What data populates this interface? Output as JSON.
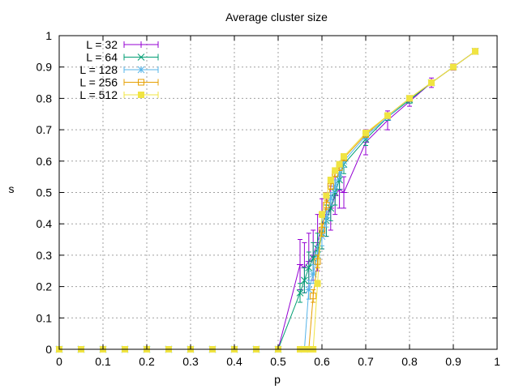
{
  "chart_data": {
    "type": "line",
    "title": "Average cluster size",
    "xlabel": "p",
    "ylabel": "s",
    "xlim": [
      0,
      1
    ],
    "ylim": [
      0,
      1
    ],
    "xticks": [
      "0",
      "0.1",
      "0.2",
      "0.3",
      "0.4",
      "0.5",
      "0.6",
      "0.7",
      "0.8",
      "0.9",
      "1"
    ],
    "yticks": [
      "0",
      "0.1",
      "0.2",
      "0.3",
      "0.4",
      "0.5",
      "0.6",
      "0.7",
      "0.8",
      "0.9",
      "1"
    ],
    "grid": true,
    "legend_position": "top-left",
    "series": [
      {
        "name": "L = 32",
        "color": "#9400d3",
        "marker": "plus",
        "x": [
          0,
          0.05,
          0.1,
          0.15,
          0.2,
          0.25,
          0.3,
          0.35,
          0.4,
          0.45,
          0.5,
          0.55,
          0.56,
          0.57,
          0.58,
          0.59,
          0.6,
          0.61,
          0.62,
          0.63,
          0.64,
          0.65,
          0.7,
          0.75,
          0.8,
          0.85,
          0.9,
          0.95
        ],
        "y": [
          0,
          0,
          0,
          0,
          0,
          0,
          0,
          0,
          0,
          0,
          0,
          0.27,
          0.26,
          0.28,
          0.3,
          0.34,
          0.4,
          0.43,
          0.45,
          0.49,
          0.51,
          0.5,
          0.66,
          0.73,
          0.79,
          0.85,
          0.9,
          0.95
        ],
        "err": [
          0,
          0,
          0,
          0,
          0,
          0,
          0,
          0,
          0,
          0,
          0,
          0.08,
          0.08,
          0.09,
          0.08,
          0.09,
          0.08,
          0.07,
          0.07,
          0.06,
          0.06,
          0.05,
          0.04,
          0.03,
          0.015,
          0.015,
          0.01,
          0.005
        ]
      },
      {
        "name": "L = 64",
        "color": "#009e73",
        "marker": "cross",
        "x": [
          0,
          0.05,
          0.1,
          0.15,
          0.2,
          0.25,
          0.3,
          0.35,
          0.4,
          0.45,
          0.5,
          0.55,
          0.56,
          0.57,
          0.58,
          0.59,
          0.6,
          0.61,
          0.62,
          0.63,
          0.64,
          0.65,
          0.7,
          0.75,
          0.8,
          0.85,
          0.9,
          0.95
        ],
        "y": [
          0,
          0,
          0,
          0,
          0,
          0,
          0,
          0,
          0,
          0,
          0,
          0.18,
          0.22,
          0.26,
          0.29,
          0.32,
          0.37,
          0.41,
          0.45,
          0.5,
          0.54,
          0.59,
          0.67,
          0.74,
          0.795,
          0.85,
          0.9,
          0.95
        ],
        "err": [
          0,
          0,
          0,
          0,
          0,
          0,
          0,
          0,
          0,
          0,
          0,
          0.03,
          0.04,
          0.05,
          0.05,
          0.05,
          0.05,
          0.05,
          0.04,
          0.04,
          0.03,
          0.03,
          0.02,
          0.01,
          0.01,
          0.005,
          0.005,
          0.004
        ]
      },
      {
        "name": "L = 128",
        "color": "#56b4e9",
        "marker": "star",
        "x": [
          0,
          0.05,
          0.1,
          0.15,
          0.2,
          0.25,
          0.3,
          0.35,
          0.4,
          0.45,
          0.5,
          0.56,
          0.57,
          0.58,
          0.59,
          0.6,
          0.61,
          0.62,
          0.63,
          0.64,
          0.65,
          0.7,
          0.75,
          0.8,
          0.85,
          0.9,
          0.95
        ],
        "y": [
          0,
          0,
          0,
          0,
          0,
          0,
          0,
          0,
          0,
          0,
          0,
          0,
          0.19,
          0.24,
          0.3,
          0.36,
          0.42,
          0.48,
          0.52,
          0.56,
          0.6,
          0.68,
          0.74,
          0.8,
          0.85,
          0.9,
          0.95
        ],
        "err": [
          0,
          0,
          0,
          0,
          0,
          0,
          0,
          0,
          0,
          0,
          0,
          0,
          0.03,
          0.03,
          0.03,
          0.03,
          0.03,
          0.02,
          0.02,
          0.02,
          0.02,
          0.01,
          0.005,
          0.005,
          0.004,
          0.003,
          0.003
        ]
      },
      {
        "name": "L = 256",
        "color": "#e69f00",
        "marker": "square-open",
        "x": [
          0,
          0.05,
          0.1,
          0.15,
          0.2,
          0.25,
          0.3,
          0.35,
          0.4,
          0.45,
          0.5,
          0.55,
          0.56,
          0.57,
          0.58,
          0.59,
          0.6,
          0.61,
          0.62,
          0.63,
          0.64,
          0.65,
          0.7,
          0.75,
          0.8,
          0.85,
          0.9,
          0.95
        ],
        "y": [
          0,
          0,
          0,
          0,
          0,
          0,
          0,
          0,
          0,
          0,
          0,
          0,
          0,
          0,
          0.17,
          0.28,
          0.38,
          0.46,
          0.52,
          0.56,
          0.58,
          0.61,
          0.685,
          0.745,
          0.8,
          0.85,
          0.9,
          0.95
        ],
        "err": [
          0,
          0,
          0,
          0,
          0,
          0,
          0,
          0,
          0,
          0,
          0,
          0,
          0,
          0,
          0.02,
          0.02,
          0.02,
          0.015,
          0.01,
          0.01,
          0.01,
          0.008,
          0.005,
          0.004,
          0.003,
          0.003,
          0.002,
          0.002
        ]
      },
      {
        "name": "L = 512",
        "color": "#f0e442",
        "marker": "square-filled",
        "x": [
          0,
          0.05,
          0.1,
          0.15,
          0.2,
          0.25,
          0.3,
          0.35,
          0.4,
          0.45,
          0.5,
          0.55,
          0.56,
          0.57,
          0.58,
          0.59,
          0.6,
          0.61,
          0.62,
          0.63,
          0.64,
          0.65,
          0.7,
          0.75,
          0.8,
          0.85,
          0.9,
          0.95
        ],
        "y": [
          0,
          0,
          0,
          0,
          0,
          0,
          0,
          0,
          0,
          0,
          0,
          0,
          0,
          0,
          0,
          0.21,
          0.43,
          0.49,
          0.54,
          0.57,
          0.59,
          0.615,
          0.69,
          0.745,
          0.8,
          0.85,
          0.9,
          0.95
        ],
        "err": [
          0,
          0,
          0,
          0,
          0,
          0,
          0,
          0,
          0,
          0,
          0,
          0,
          0,
          0,
          0,
          0.01,
          0.01,
          0.008,
          0.006,
          0.005,
          0.005,
          0.004,
          0.003,
          0.002,
          0.002,
          0.002,
          0.001,
          0.001
        ]
      }
    ]
  }
}
